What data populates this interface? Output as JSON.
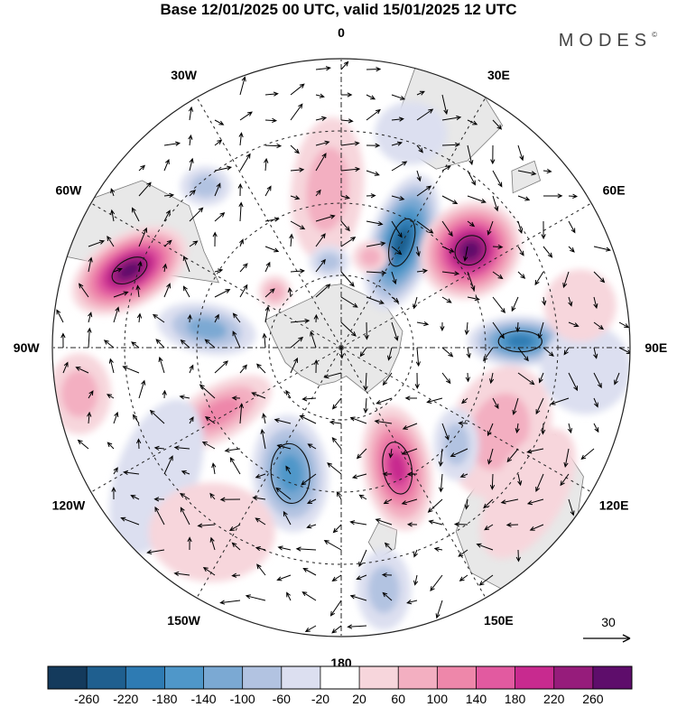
{
  "header": {
    "title": "Base 12/01/2025 00 UTC, valid 15/01/2025 12 UTC",
    "brand": "MODES",
    "brand_mark": "©"
  },
  "map": {
    "projection": "south-polar-stereographic",
    "longitude_labels": [
      {
        "text": "0",
        "lon": 0
      },
      {
        "text": "30E",
        "lon": 30
      },
      {
        "text": "60E",
        "lon": 60
      },
      {
        "text": "90E",
        "lon": 90
      },
      {
        "text": "120E",
        "lon": 120
      },
      {
        "text": "150E",
        "lon": 150
      },
      {
        "text": "180",
        "lon": 180
      },
      {
        "text": "150W",
        "lon": -150
      },
      {
        "text": "120W",
        "lon": -120
      },
      {
        "text": "90W",
        "lon": -90
      },
      {
        "text": "60W",
        "lon": -60
      },
      {
        "text": "30W",
        "lon": -30
      }
    ],
    "reference_vector": {
      "label": "30"
    },
    "colors": {
      "land": "#e8e8e8",
      "coast": "#7a7a7a",
      "grid": "#222222"
    }
  },
  "colorbar": {
    "labels": [
      "-260",
      "-220",
      "-180",
      "-140",
      "-100",
      "-60",
      "-20",
      "20",
      "60",
      "100",
      "140",
      "180",
      "220",
      "260"
    ],
    "colors": [
      "#143a5c",
      "#1f5f8f",
      "#2e7bb3",
      "#4f97c9",
      "#7ba9d3",
      "#b2c3e1",
      "#dcdff0",
      "#ffffff",
      "#f7d6dc",
      "#f3afc1",
      "#ee87aa",
      "#e25aa0",
      "#c82a8f",
      "#961c7b",
      "#5e0d6b"
    ]
  },
  "field_anomalies": [
    {
      "name": "a1",
      "dir": -70,
      "r": 0.78,
      "sx": 70,
      "sy": 40,
      "rot": -30,
      "level": 7,
      "sign": 1
    },
    {
      "name": "a2",
      "dir": 30,
      "r": 0.42,
      "sx": 36,
      "sy": 78,
      "rot": 18,
      "level": 6,
      "sign": -1
    },
    {
      "name": "a3",
      "dir": 53,
      "r": 0.56,
      "sx": 58,
      "sy": 52,
      "rot": -35,
      "level": 7,
      "sign": 1
    },
    {
      "name": "a4",
      "dir": 88,
      "r": 0.62,
      "sx": 58,
      "sy": 28,
      "rot": 0,
      "level": 5,
      "sign": -1
    },
    {
      "name": "a5",
      "dir": 155,
      "r": 0.46,
      "sx": 38,
      "sy": 70,
      "rot": -10,
      "level": 5,
      "sign": 1
    },
    {
      "name": "a6",
      "dir": -158,
      "r": 0.47,
      "sx": 42,
      "sy": 65,
      "rot": -5,
      "level": 4,
      "sign": -1
    },
    {
      "name": "a7",
      "dir": -118,
      "r": 0.48,
      "sx": 65,
      "sy": 30,
      "rot": -30,
      "level": 3,
      "sign": 1
    },
    {
      "name": "a8",
      "dir": -82,
      "r": 0.47,
      "sx": 55,
      "sy": 28,
      "rot": 10,
      "level": 3,
      "sign": -1
    },
    {
      "name": "a9",
      "dir": -40,
      "r": 0.73,
      "sx": 28,
      "sy": 22,
      "rot": 0,
      "level": 2,
      "sign": -1
    },
    {
      "name": "a10",
      "dir": -5,
      "r": 0.55,
      "sx": 40,
      "sy": 80,
      "rot": 5,
      "level": 2,
      "sign": 1
    },
    {
      "name": "a11",
      "dir": -50,
      "r": 0.3,
      "sx": 18,
      "sy": 18,
      "rot": 0,
      "level": 2,
      "sign": 1
    },
    {
      "name": "a12",
      "dir": -8,
      "r": 0.3,
      "sx": 22,
      "sy": 18,
      "rot": 0,
      "level": 2,
      "sign": -1
    },
    {
      "name": "a13",
      "dir": 18,
      "r": 0.33,
      "sx": 20,
      "sy": 18,
      "rot": 0,
      "level": 2,
      "sign": 1
    },
    {
      "name": "a14",
      "dir": 118,
      "r": 0.62,
      "sx": 55,
      "sy": 75,
      "rot": 20,
      "level": 2,
      "sign": 1
    },
    {
      "name": "a15",
      "dir": 128,
      "r": 0.82,
      "sx": 40,
      "sy": 80,
      "rot": 30,
      "level": 1,
      "sign": 1
    },
    {
      "name": "a16",
      "dir": 130,
      "r": 0.52,
      "sx": 25,
      "sy": 40,
      "rot": 0,
      "level": 2,
      "sign": -1
    },
    {
      "name": "a17",
      "dir": 170,
      "r": 0.85,
      "sx": 30,
      "sy": 45,
      "rot": 0,
      "level": 2,
      "sign": -1
    },
    {
      "name": "a18",
      "dir": -125,
      "r": 0.78,
      "sx": 45,
      "sy": 90,
      "rot": 20,
      "level": 1,
      "sign": -1
    },
    {
      "name": "a19",
      "dir": -100,
      "r": 0.92,
      "sx": 35,
      "sy": 45,
      "rot": 0,
      "level": 2,
      "sign": 1
    },
    {
      "name": "a20",
      "dir": -145,
      "r": 0.78,
      "sx": 70,
      "sy": 55,
      "rot": 0,
      "level": 1,
      "sign": 1
    },
    {
      "name": "a21",
      "dir": 95,
      "r": 0.85,
      "sx": 50,
      "sy": 50,
      "rot": 0,
      "level": 1,
      "sign": -1
    },
    {
      "name": "a22",
      "dir": 18,
      "r": 0.78,
      "sx": 40,
      "sy": 35,
      "rot": 0,
      "level": 1,
      "sign": -1
    },
    {
      "name": "a23",
      "dir": 80,
      "r": 0.84,
      "sx": 40,
      "sy": 40,
      "rot": 0,
      "level": 1,
      "sign": 1
    }
  ]
}
